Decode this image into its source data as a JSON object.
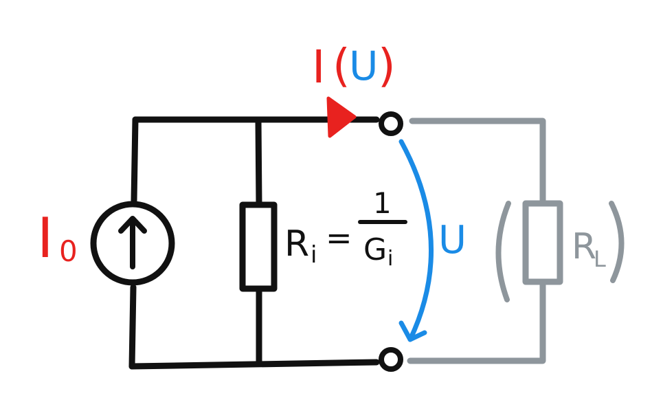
{
  "colors": {
    "wire": "#111111",
    "load": "#8e969c",
    "current": "#e8221f",
    "voltage": "#1a8be6"
  },
  "labels": {
    "source_current": {
      "main": "I",
      "subscript": "0"
    },
    "output_current": {
      "current": "I",
      "open_paren": "(",
      "voltage": "U",
      "close_paren": ")"
    },
    "internal_resistance": {
      "name": "R",
      "subscript": "i",
      "equals": "=",
      "numerator": "1",
      "denominator": "G",
      "denominator_subscript": "i"
    },
    "voltage": "U",
    "load_resistor": {
      "name": "R",
      "subscript": "L",
      "open_paren": "(",
      "close_paren": ")"
    }
  },
  "icons": {
    "current_source": "current-source-icon",
    "resistor": "resistor-icon",
    "terminal": "terminal-icon",
    "current_arrow": "arrow-icon",
    "voltage_arrow": "curved-arrow-icon"
  }
}
